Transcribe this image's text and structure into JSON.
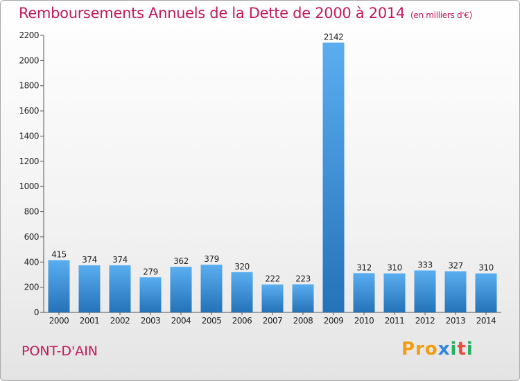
{
  "title": "Remboursements Annuels de la Dette de 2000 à 2014",
  "unit": "(en milliers d'€)",
  "commune": "PONT-D'AIN",
  "logo": {
    "p1": "Pro",
    "p2": "x",
    "p3": "i",
    "p4": "t",
    "p5": "i"
  },
  "chart_data": {
    "type": "bar",
    "categories": [
      "2000",
      "2001",
      "2002",
      "2003",
      "2004",
      "2005",
      "2006",
      "2007",
      "2008",
      "2009",
      "2010",
      "2011",
      "2012",
      "2013",
      "2014"
    ],
    "values": [
      415,
      374,
      374,
      279,
      362,
      379,
      320,
      222,
      223,
      2142,
      312,
      310,
      333,
      327,
      310
    ],
    "ylim": [
      0,
      2200
    ],
    "yticks": [
      0,
      200,
      400,
      600,
      800,
      1000,
      1200,
      1400,
      1600,
      1800,
      2000,
      2200
    ],
    "grid": false,
    "colors": {
      "bar_top": "#5aaef0",
      "bar_bottom": "#2472b8",
      "label": "#222222"
    }
  }
}
